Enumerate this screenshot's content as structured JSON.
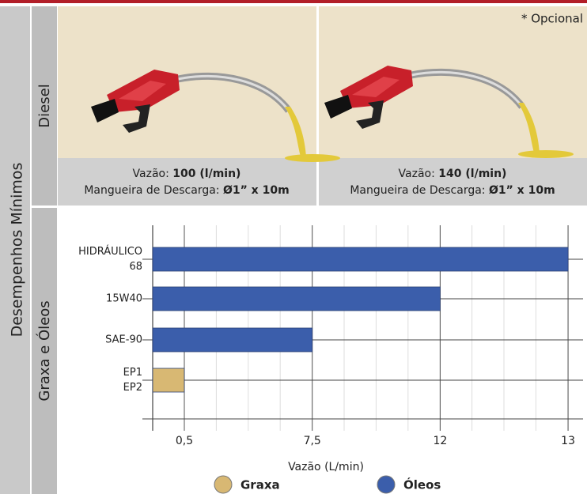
{
  "side_title": "Desempenhos Mínimos",
  "sections": [
    "Diesel",
    "Graxa e Óleos"
  ],
  "note": "* Opcional",
  "panels": [
    {
      "flow_label": "Vazão:",
      "flow_value": "100 (l/min)",
      "hose_label": "Mangueira de Descarga:",
      "hose_value": "Ø1” x 10m"
    },
    {
      "flow_label": "Vazão:",
      "flow_value": "140 (l/min)",
      "hose_label": "Mangueira de Descarga:",
      "hose_value": "Ø1” x 10m"
    }
  ],
  "chart_data": {
    "type": "bar",
    "orientation": "horizontal",
    "categories": [
      [
        "HIDRÁULICO",
        "68"
      ],
      [
        "15W40"
      ],
      [
        "SAE-90"
      ],
      [
        "EP1",
        "EP2"
      ]
    ],
    "series": [
      {
        "name": "Graxa",
        "color": "#d8b873",
        "values": [
          null,
          null,
          null,
          0.5
        ]
      },
      {
        "name": "Óleos",
        "color": "#3b5eab",
        "values": [
          13,
          12,
          7.5,
          null
        ]
      }
    ],
    "xlabel": "Vazão (L/min)",
    "xlim": [
      0,
      13
    ],
    "xticks": [
      {
        "value": 0.5,
        "label": "0,5"
      },
      {
        "value": 7.5,
        "label": "7,5"
      },
      12,
      13
    ],
    "grid": true
  }
}
